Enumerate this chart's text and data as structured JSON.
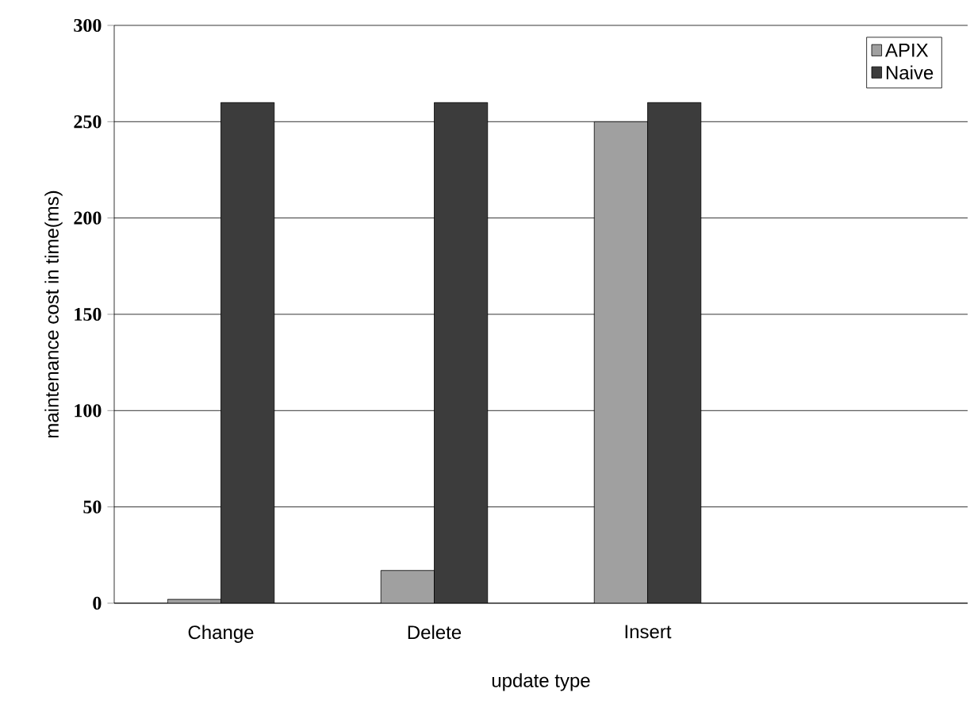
{
  "chart_data": {
    "type": "bar",
    "xlabel": "update type",
    "ylabel": "maintenance cost in time(ms)",
    "categories": [
      "Change",
      "Delete",
      "Insert",
      null
    ],
    "series": [
      {
        "name": "APIX",
        "color": "#a0a0a0",
        "values": [
          2,
          17,
          250,
          null
        ]
      },
      {
        "name": "Naive",
        "color": "#3c3c3c",
        "values": [
          260,
          260,
          260,
          null
        ]
      }
    ],
    "ylim": [
      0,
      300
    ],
    "yticks": [
      0,
      50,
      100,
      150,
      200,
      250,
      300
    ],
    "grid": "y",
    "legend": "top right"
  }
}
